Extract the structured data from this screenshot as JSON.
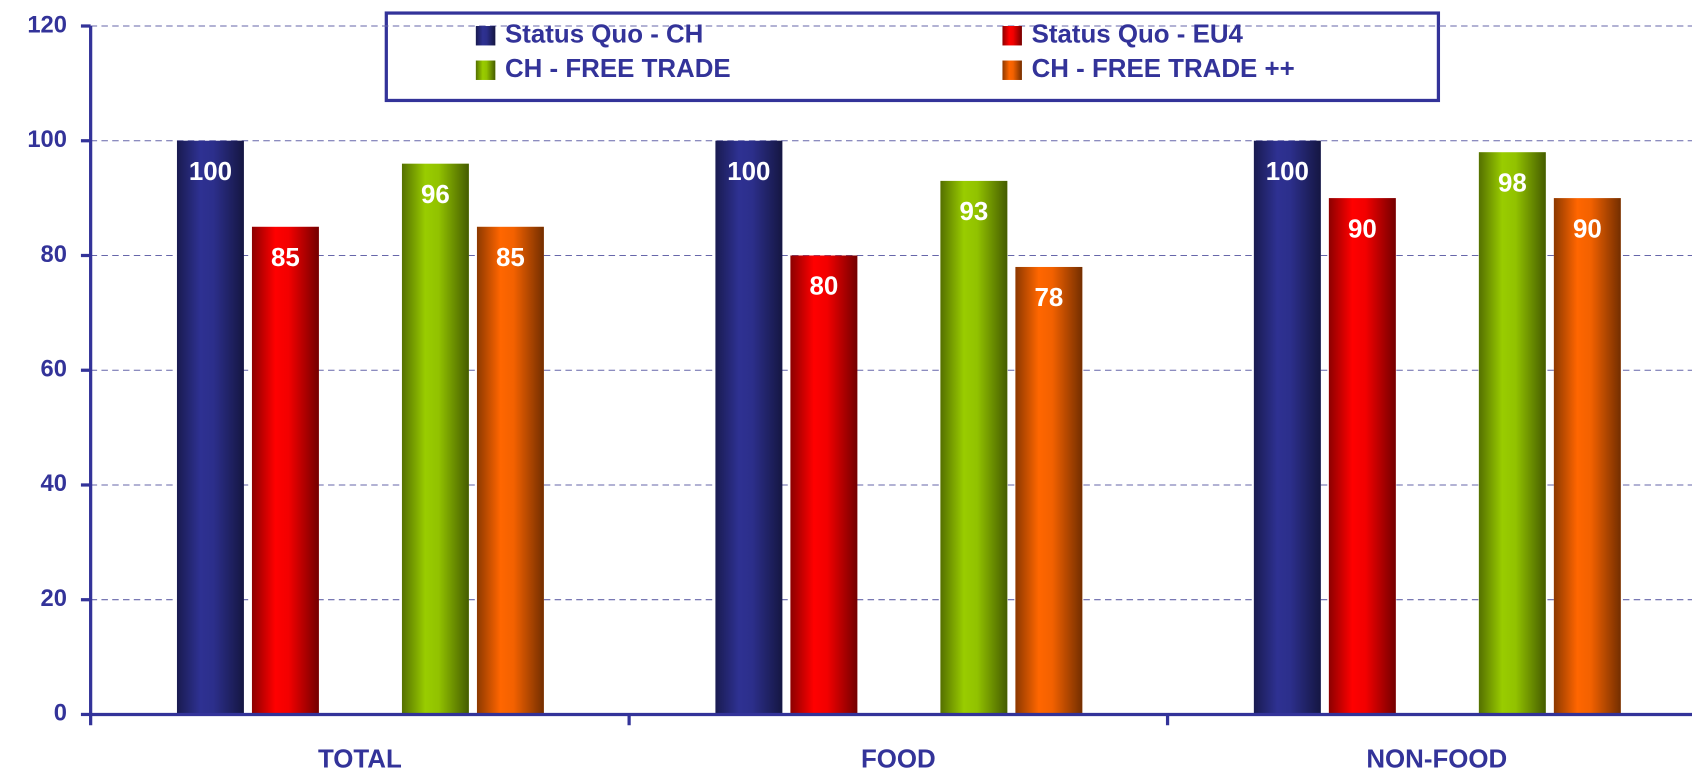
{
  "chart_data": {
    "type": "bar",
    "categories": [
      "TOTAL",
      "FOOD",
      "NON-FOOD"
    ],
    "series": [
      {
        "name": "Status Quo - CH",
        "color": "#2e3192",
        "values": [
          100,
          100,
          100
        ]
      },
      {
        "name": "Status Quo - EU4",
        "color": "#ff0000",
        "values": [
          85,
          80,
          90
        ]
      },
      {
        "name": "CH - FREE TRADE",
        "color": "#99cc00",
        "values": [
          96,
          93,
          98
        ]
      },
      {
        "name": "CH - FREE TRADE ++",
        "color": "#ff6600",
        "values": [
          85,
          78,
          90
        ]
      }
    ],
    "ylim": [
      0,
      120
    ],
    "yticks": [
      0,
      20,
      40,
      60,
      80,
      100,
      120
    ],
    "grid": true
  }
}
